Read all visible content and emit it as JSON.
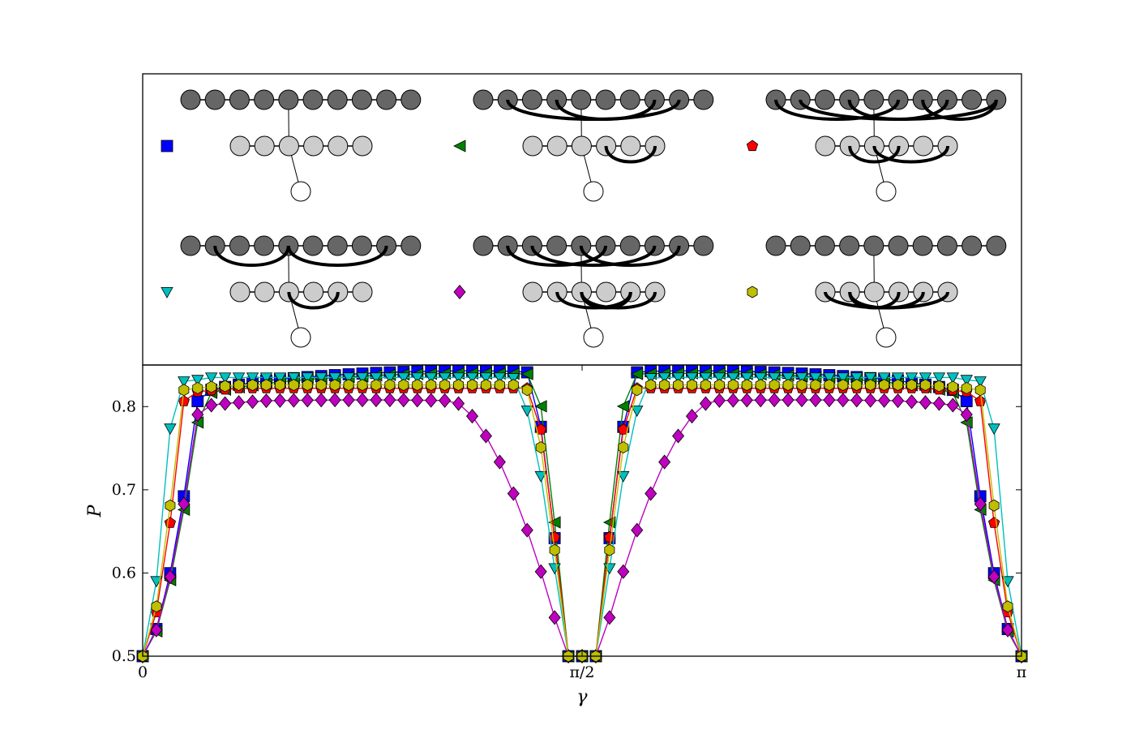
{
  "chart_data": [
    {
      "type": "diagram",
      "panels": [
        {
          "marker": "square",
          "color": "#0000ff",
          "arcs_top": [],
          "arcs_mid": []
        },
        {
          "marker": "triangle-left",
          "color": "#008000",
          "arcs_top": [
            [
              1,
              8
            ],
            [
              3,
              7
            ]
          ],
          "arcs_mid": [
            [
              3,
              5
            ]
          ]
        },
        {
          "marker": "pentagon",
          "color": "#ff0000",
          "arcs_top": [
            [
              0,
              5
            ],
            [
              1,
              9
            ],
            [
              3,
              7
            ],
            [
              6,
              9
            ]
          ],
          "arcs_mid": [
            [
              1,
              3
            ],
            [
              2,
              5
            ]
          ]
        },
        {
          "marker": "triangle-down",
          "color": "#00bfbf",
          "arcs_top": [
            [
              1,
              4
            ],
            [
              4,
              8
            ]
          ],
          "arcs_mid": [
            [
              2,
              4
            ]
          ]
        },
        {
          "marker": "diamond",
          "color": "#bf00bf",
          "arcs_top": [
            [
              1,
              5
            ],
            [
              2,
              7
            ],
            [
              4,
              8
            ]
          ],
          "arcs_mid": [
            [
              1,
              4
            ],
            [
              2,
              5
            ],
            [
              2,
              4
            ]
          ]
        },
        {
          "marker": "hexagon",
          "color": "#bfbf00",
          "arcs_top": [],
          "arcs_mid": [
            [
              0,
              5
            ],
            [
              1,
              4
            ],
            [
              1,
              3
            ]
          ]
        }
      ]
    },
    {
      "type": "line",
      "xlabel": "γ",
      "ylabel": "P",
      "xlim": [
        0,
        3.14159
      ],
      "ylim": [
        0.5,
        0.85
      ],
      "xticks": [
        {
          "value": 0,
          "label": "0"
        },
        {
          "value": 1.5708,
          "label": "π/2"
        },
        {
          "value": 3.14159,
          "label": "π"
        }
      ],
      "yticks": [
        {
          "value": 0.5,
          "label": "0.5"
        },
        {
          "value": 0.6,
          "label": "0.6"
        },
        {
          "value": 0.7,
          "label": "0.7"
        },
        {
          "value": 0.8,
          "label": "0.8"
        }
      ],
      "grid": false,
      "series": [
        {
          "marker": "square",
          "color": "#0000ff",
          "p": 0.5,
          "plateau": 0.843,
          "rise": 0.2,
          "fall": 1.37,
          "shape": "peak"
        },
        {
          "marker": "triangle-left",
          "color": "#008000",
          "p": 0.5,
          "plateau": 0.84,
          "rise": 0.21,
          "fall": 1.39,
          "shape": "peak"
        },
        {
          "marker": "pentagon",
          "color": "#ff0000",
          "p": 0.5,
          "plateau": 0.822,
          "rise": 0.15,
          "fall": 1.38,
          "shape": "flat"
        },
        {
          "marker": "triangle-down",
          "color": "#00bfbf",
          "p": 0.5,
          "plateau": 0.835,
          "rise": 0.11,
          "fall": 1.32,
          "shape": "flat"
        },
        {
          "marker": "diamond",
          "color": "#bf00bf",
          "p": 0.5,
          "plateau": 0.808,
          "rise": 0.2,
          "fall": 1.1,
          "shape": "wide"
        },
        {
          "marker": "hexagon",
          "color": "#bfbf00",
          "p": 0.5,
          "plateau": 0.826,
          "rise": 0.14,
          "fall": 1.36,
          "shape": "flat"
        }
      ]
    }
  ]
}
